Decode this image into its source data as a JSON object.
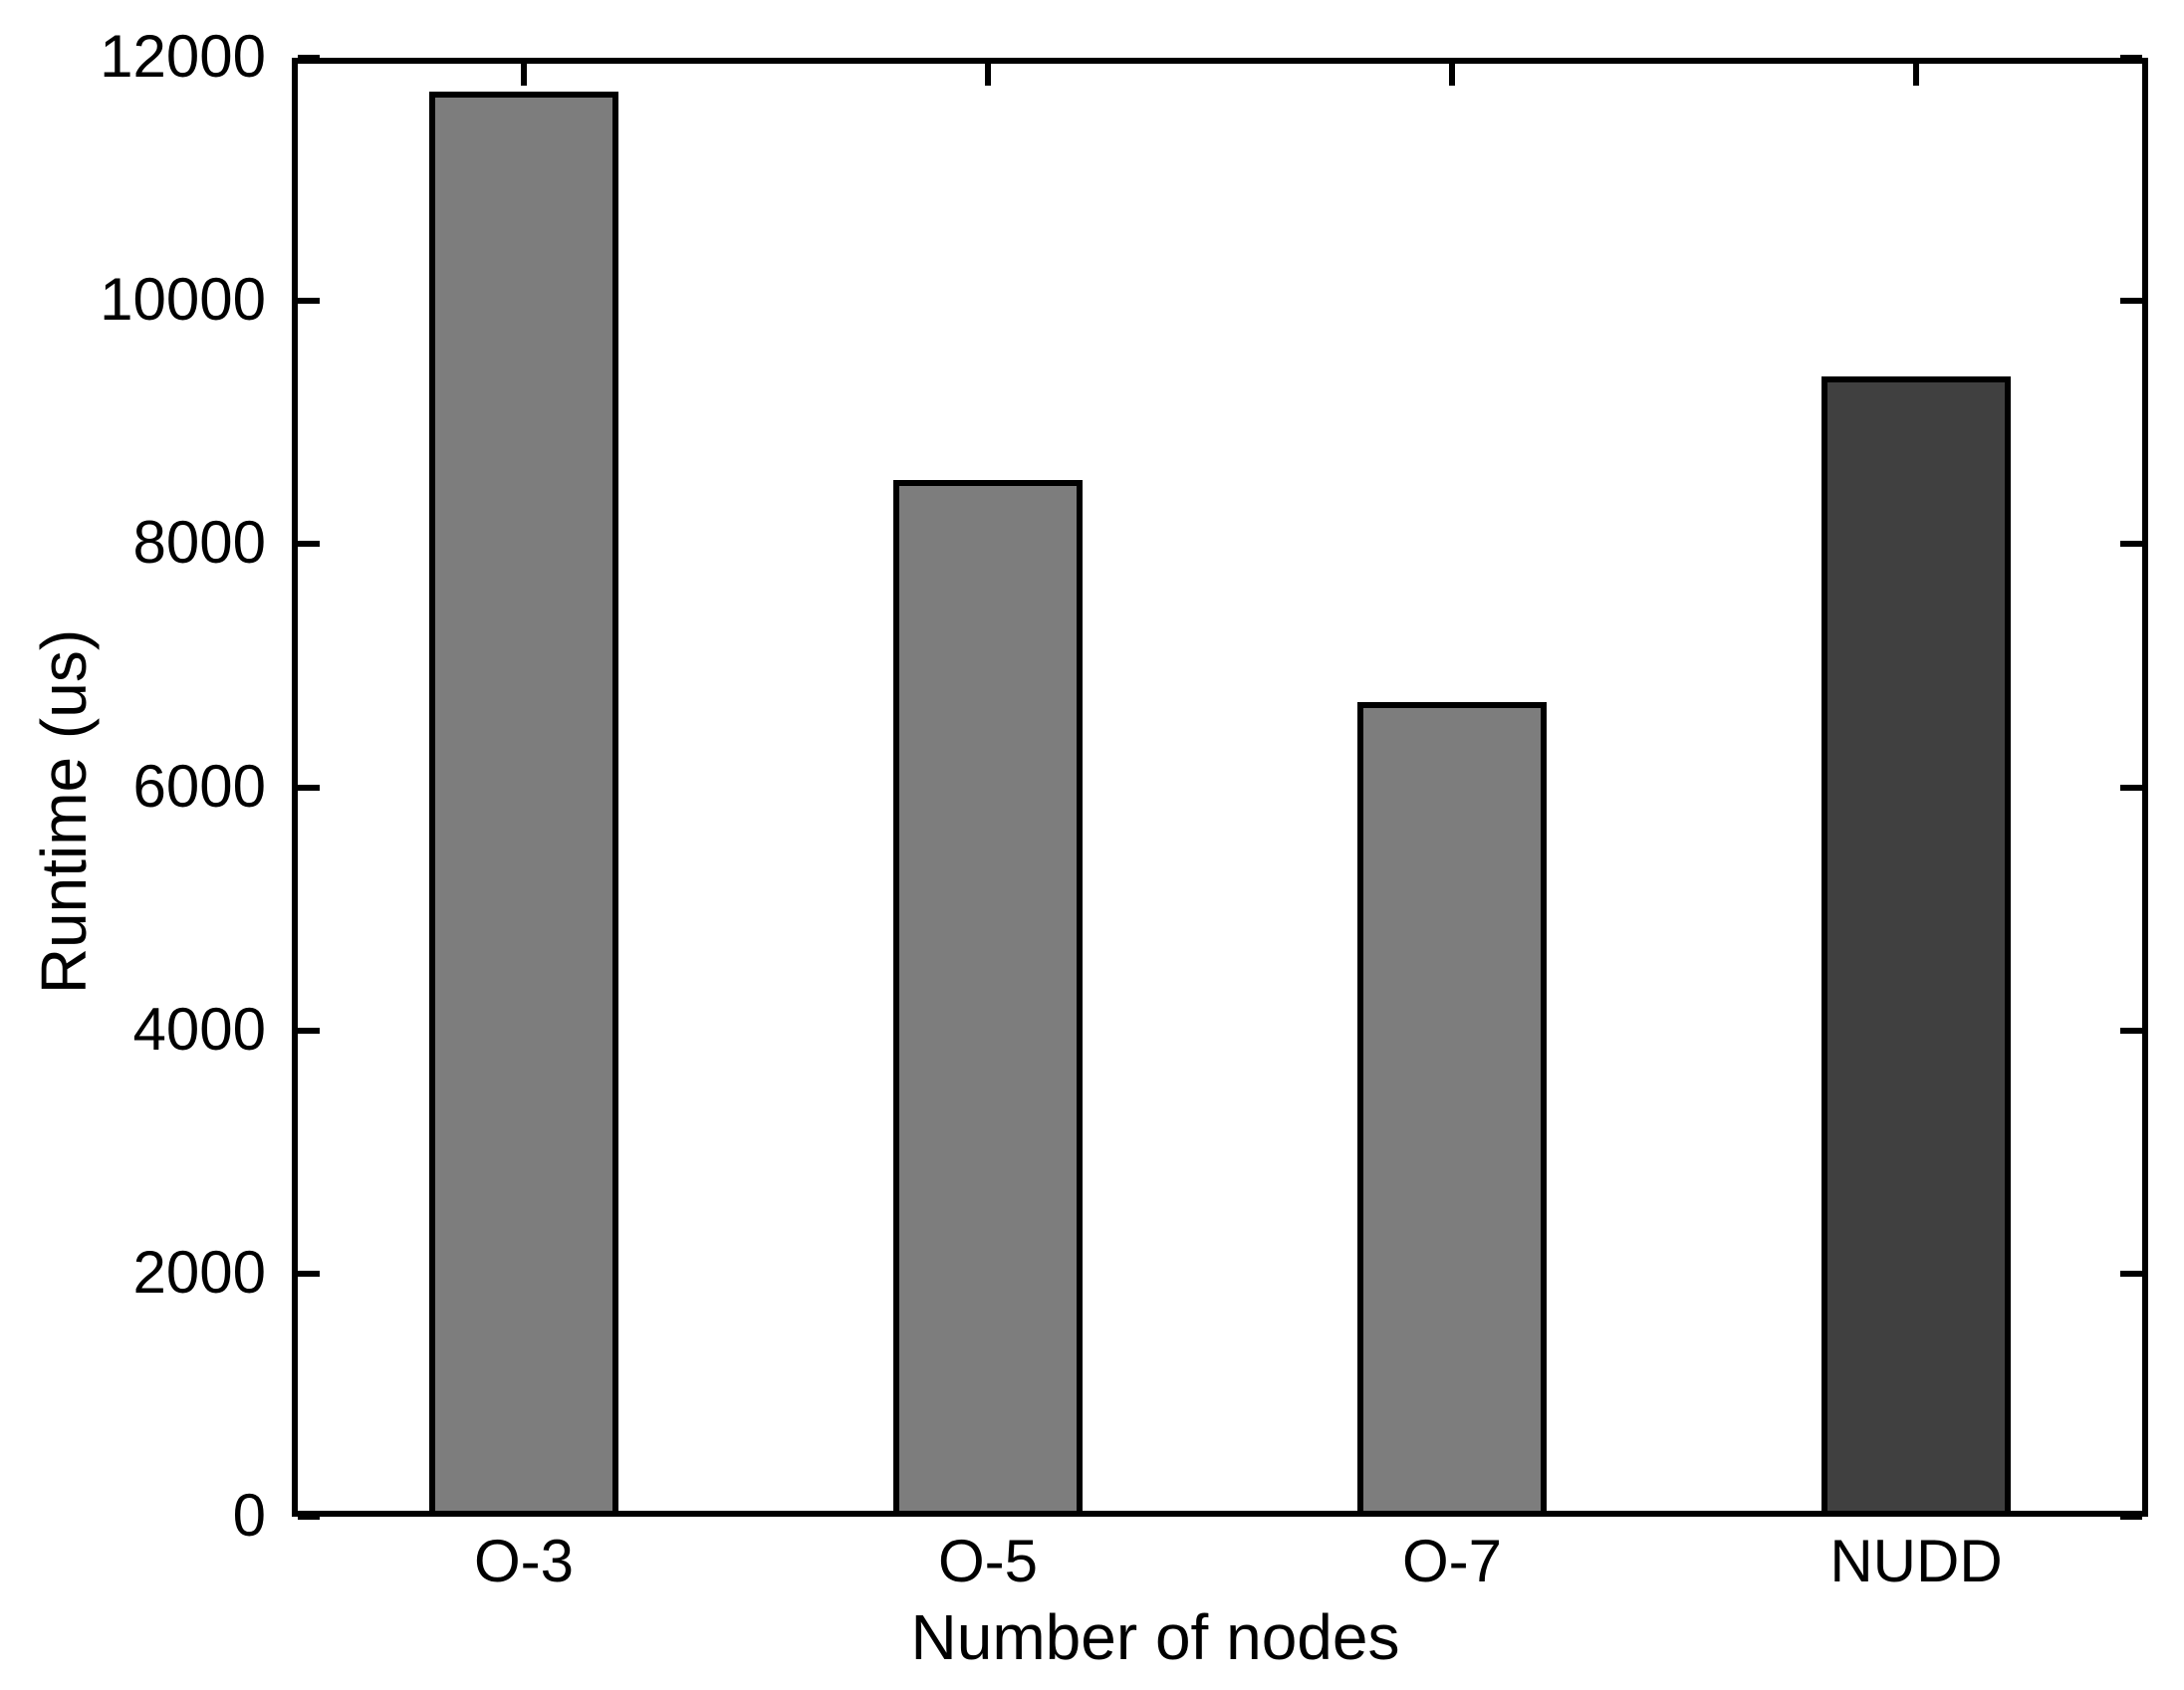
{
  "chart_data": {
    "type": "bar",
    "title": "",
    "xlabel": "Number of nodes",
    "ylabel": "Runtime (us)",
    "categories": [
      "O-3",
      "O-5",
      "O-7",
      "NUDD"
    ],
    "values": [
      11720,
      8530,
      6700,
      9380
    ],
    "bar_colors": [
      "#7d7d7d",
      "#7d7d7d",
      "#7d7d7d",
      "#404040"
    ],
    "bar_edge_color": "#000000",
    "ylim": [
      0,
      12000
    ],
    "yticks": [
      0,
      2000,
      4000,
      6000,
      8000,
      10000,
      12000
    ],
    "ytick_labels": [
      "0",
      "2000",
      "4000",
      "6000",
      "8000",
      "10000",
      "12000"
    ],
    "grid": false,
    "legend": "none",
    "axis_color": "#000000",
    "background_color": "#ffffff",
    "tick_direction": "in"
  }
}
